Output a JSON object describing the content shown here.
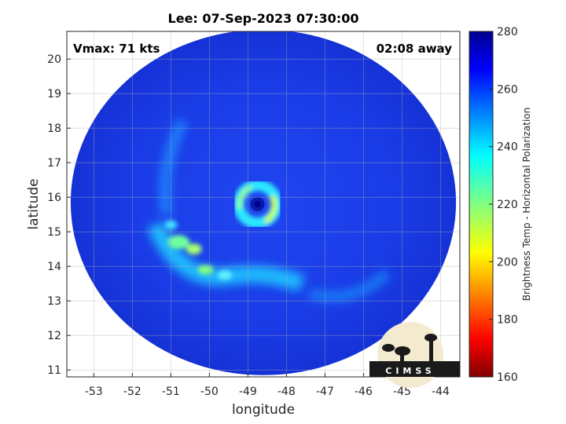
{
  "title": "Lee: 07-Sep-2023 07:30:00",
  "vmax_label": "Vmax: 71 kts",
  "away_label": "02:08 away",
  "map": {
    "xlabel": "longitude",
    "ylabel": "latitude",
    "xlim": [
      -53.7,
      -43.5
    ],
    "ylim": [
      10.8,
      20.8
    ],
    "xticks": [
      -53,
      -52,
      -51,
      -50,
      -49,
      -48,
      -47,
      -46,
      -45,
      -44
    ],
    "yticks": [
      11,
      12,
      13,
      14,
      15,
      16,
      17,
      18,
      19,
      20
    ],
    "grid": true,
    "storm_center": {
      "lon": -48.75,
      "lat": 15.8
    },
    "swath_center": {
      "lon": -48.6,
      "lat": 15.85
    },
    "swath_radius_deg": 5.0
  },
  "colorbar": {
    "label": "Brightness Temp - Horizontal Polarization",
    "min": 160,
    "max": 280,
    "ticks": [
      160,
      180,
      200,
      220,
      240,
      260,
      280
    ],
    "colormap": "jet"
  },
  "logo": {
    "text": "CIMSS"
  }
}
